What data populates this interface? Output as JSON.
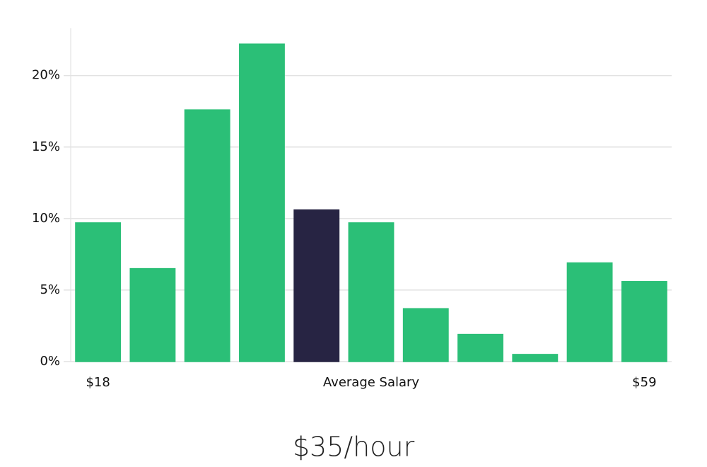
{
  "chart_data": {
    "type": "bar",
    "categories": [
      "$18",
      null,
      null,
      null,
      null,
      null,
      null,
      null,
      null,
      null,
      "$59"
    ],
    "values": [
      9.7,
      6.5,
      17.6,
      22.2,
      10.6,
      9.7,
      3.7,
      1.9,
      0.5,
      6.9,
      5.6
    ],
    "colors": [
      "#2bbf77",
      "#2bbf77",
      "#2bbf77",
      "#2bbf77",
      "#272443",
      "#2bbf77",
      "#2bbf77",
      "#2bbf77",
      "#2bbf77",
      "#2bbf77",
      "#2bbf77"
    ],
    "x_label": "Average Salary",
    "annotation": "$35/hour",
    "ylim": [
      0,
      23.3
    ],
    "yticks": [
      {
        "value": 0,
        "label": "0%"
      },
      {
        "value": 5,
        "label": "5%"
      },
      {
        "value": 10,
        "label": "10%"
      },
      {
        "value": 15,
        "label": "15%"
      },
      {
        "value": 20,
        "label": "20%"
      }
    ],
    "grid": true
  }
}
